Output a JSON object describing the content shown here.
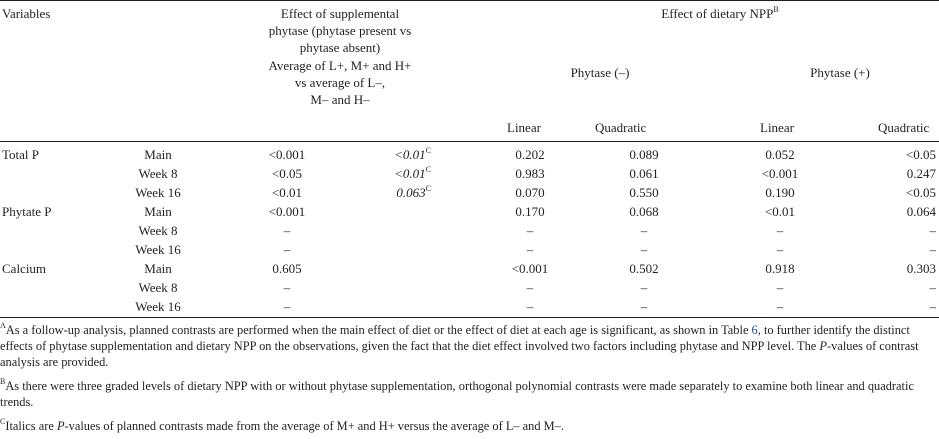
{
  "header": {
    "variables": "Variables",
    "supp_l1": "Effect of supplemental",
    "supp_l2": "phytase (phytase present vs",
    "supp_l3": "phytase absent)",
    "avg_l1": "Average of L+, M+ and H+",
    "avg_l2": "vs average of L–,",
    "avg_l3": "M– and H–",
    "npp": "Effect of dietary NPP",
    "npp_sup": "B",
    "phy_minus": "Phytase (–)",
    "phy_plus": "Phytase (+)",
    "linear": "Linear",
    "quadratic": "Quadratic"
  },
  "rows": [
    {
      "variable": "Total P",
      "time": "Main",
      "supp": "<0.001",
      "italic": "<0.01",
      "italic_sup": "C",
      "lin_minus": "0.202",
      "quad_minus": "0.089",
      "lin_plus": "0.052",
      "quad_plus": "<0.05"
    },
    {
      "variable": "",
      "time": "Week 8",
      "supp": "<0.05",
      "italic": "<0.01",
      "italic_sup": "C",
      "lin_minus": "0.983",
      "quad_minus": "0.061",
      "lin_plus": "<0.001",
      "quad_plus": "0.247"
    },
    {
      "variable": "",
      "time": "Week 16",
      "supp": "<0.01",
      "italic": "0.063",
      "italic_sup": "C",
      "lin_minus": "0.070",
      "quad_minus": "0.550",
      "lin_plus": "0.190",
      "quad_plus": "<0.05"
    },
    {
      "variable": "Phytate P",
      "time": "Main",
      "supp": "<0.001",
      "italic": "",
      "italic_sup": "",
      "lin_minus": "0.170",
      "quad_minus": "0.068",
      "lin_plus": "<0.01",
      "quad_plus": "0.064"
    },
    {
      "variable": "",
      "time": "Week 8",
      "supp": "–",
      "italic": "",
      "italic_sup": "",
      "lin_minus": "–",
      "quad_minus": "–",
      "lin_plus": "–",
      "quad_plus": "–"
    },
    {
      "variable": "",
      "time": "Week 16",
      "supp": "–",
      "italic": "",
      "italic_sup": "",
      "lin_minus": "–",
      "quad_minus": "–",
      "lin_plus": "–",
      "quad_plus": "–"
    },
    {
      "variable": "Calcium",
      "time": "Main",
      "supp": "0.605",
      "italic": "",
      "italic_sup": "",
      "lin_minus": "<0.001",
      "quad_minus": "0.502",
      "lin_plus": "0.918",
      "quad_plus": "0.303"
    },
    {
      "variable": "",
      "time": "Week 8",
      "supp": "–",
      "italic": "",
      "italic_sup": "",
      "lin_minus": "–",
      "quad_minus": "–",
      "lin_plus": "–",
      "quad_plus": "–"
    },
    {
      "variable": "",
      "time": "Week 16",
      "supp": "–",
      "italic": "",
      "italic_sup": "",
      "lin_minus": "–",
      "quad_minus": "–",
      "lin_plus": "–",
      "quad_plus": "–"
    }
  ],
  "footnotes": {
    "a_sup": "A",
    "a_text_1": "As a follow-up analysis, planned contrasts are performed when the main effect of diet or the effect of diet at each age is significant, as shown in Table ",
    "a_link": "6",
    "a_text_2": ", to further identify the distinct effects of phytase supplementation and dietary NPP on the observations, given the fact that the diet effect involved two factors including phytase and NPP level. The ",
    "a_p": "P",
    "a_text_3": "-values of contrast analysis are provided.",
    "b_sup": "B",
    "b_text": "As there were three graded levels of dietary NPP with or without phytase supplementation, orthogonal polynomial contrasts were made separately to examine both linear and quadratic trends.",
    "c_sup": "C",
    "c_text_1": "Italics are ",
    "c_p": "P",
    "c_text_2": "-values of planned contrasts made from the average of M+ and H+ versus the average of L– and M–."
  }
}
